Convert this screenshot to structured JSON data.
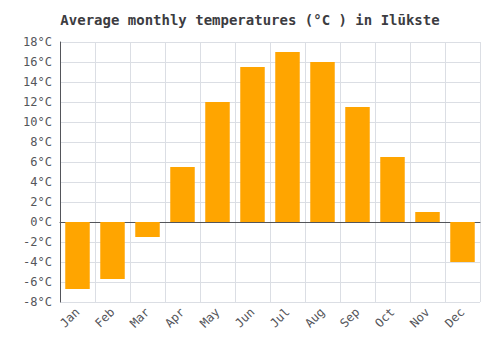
{
  "chart_data": {
    "type": "bar",
    "title": "Average monthly temperatures (°C ) in Ilūkste",
    "categories": [
      "Jan",
      "Feb",
      "Mar",
      "Apr",
      "May",
      "Jun",
      "Jul",
      "Aug",
      "Sep",
      "Oct",
      "Nov",
      "Dec"
    ],
    "values": [
      -6.7,
      -5.7,
      -1.5,
      5.5,
      12.0,
      15.5,
      17.0,
      16.0,
      11.5,
      6.5,
      1.0,
      -4.0
    ],
    "color": "#FFA500",
    "ylim": [
      -8,
      18
    ],
    "yticks": [
      {
        "value": -8,
        "label": "-8°C"
      },
      {
        "value": -6,
        "label": "-6°C"
      },
      {
        "value": -4,
        "label": "-4°C"
      },
      {
        "value": -2,
        "label": "-2°C"
      },
      {
        "value": 0,
        "label": "0°C"
      },
      {
        "value": 2,
        "label": "2°C"
      },
      {
        "value": 4,
        "label": "4°C"
      },
      {
        "value": 6,
        "label": "6°C"
      },
      {
        "value": 8,
        "label": "8°C"
      },
      {
        "value": 10,
        "label": "10°C"
      },
      {
        "value": 12,
        "label": "12°C"
      },
      {
        "value": 14,
        "label": "14°C"
      },
      {
        "value": 16,
        "label": "16°C"
      },
      {
        "value": 18,
        "label": "18°C"
      }
    ],
    "grid": true
  }
}
